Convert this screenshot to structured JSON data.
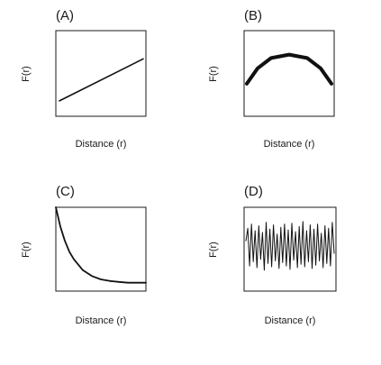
{
  "figure": {
    "background": "#ffffff",
    "ink": "#111111"
  },
  "chart_data": [
    {
      "type": "line",
      "panel": "(A)",
      "xlabel": "Distance (r)",
      "ylabel": "F(r)",
      "shape": "linear increasing",
      "xlim": [
        0,
        1
      ],
      "ylim": [
        0,
        1
      ],
      "x": [
        0.04,
        0.97
      ],
      "y": [
        0.18,
        0.67
      ]
    },
    {
      "type": "line",
      "panel": "(B)",
      "xlabel": "Distance (r)",
      "ylabel": "F(r)",
      "shape": "concave parabola",
      "xlim": [
        0,
        1
      ],
      "ylim": [
        0,
        1
      ],
      "x": [
        0.03,
        0.15,
        0.3,
        0.5,
        0.7,
        0.85,
        0.97
      ],
      "y": [
        0.38,
        0.56,
        0.68,
        0.72,
        0.68,
        0.56,
        0.38
      ]
    },
    {
      "type": "line",
      "panel": "(C)",
      "xlabel": "Distance (r)",
      "ylabel": "F(r)",
      "shape": "exponential decay",
      "xlim": [
        0,
        1
      ],
      "ylim": [
        0,
        1
      ],
      "x": [
        0.0,
        0.05,
        0.1,
        0.15,
        0.2,
        0.3,
        0.4,
        0.5,
        0.6,
        0.7,
        0.8,
        0.9,
        1.0
      ],
      "y": [
        1.0,
        0.77,
        0.6,
        0.47,
        0.38,
        0.25,
        0.18,
        0.14,
        0.12,
        0.11,
        0.1,
        0.1,
        0.1
      ]
    },
    {
      "type": "line",
      "panel": "(D)",
      "xlabel": "Distance (r)",
      "ylabel": "F(r)",
      "shape": "rapid oscillation",
      "xlim": [
        0,
        1
      ],
      "ylim": [
        0,
        1
      ],
      "x": [
        0.02,
        0.04,
        0.06,
        0.08,
        0.1,
        0.12,
        0.14,
        0.16,
        0.18,
        0.2,
        0.22,
        0.24,
        0.26,
        0.28,
        0.3,
        0.32,
        0.34,
        0.36,
        0.38,
        0.4,
        0.42,
        0.44,
        0.46,
        0.48,
        0.5,
        0.52,
        0.54,
        0.56,
        0.58,
        0.6,
        0.62,
        0.64,
        0.66,
        0.68,
        0.7,
        0.72,
        0.74,
        0.76,
        0.78,
        0.8,
        0.82,
        0.84,
        0.86,
        0.88,
        0.9,
        0.92,
        0.94,
        0.96,
        0.98
      ],
      "y": [
        0.6,
        0.75,
        0.3,
        0.8,
        0.35,
        0.72,
        0.28,
        0.78,
        0.38,
        0.7,
        0.25,
        0.82,
        0.33,
        0.74,
        0.29,
        0.79,
        0.36,
        0.68,
        0.27,
        0.76,
        0.34,
        0.8,
        0.3,
        0.73,
        0.26,
        0.81,
        0.37,
        0.71,
        0.28,
        0.77,
        0.32,
        0.83,
        0.29,
        0.72,
        0.35,
        0.79,
        0.27,
        0.74,
        0.31,
        0.8,
        0.36,
        0.69,
        0.28,
        0.78,
        0.33,
        0.75,
        0.3,
        0.82,
        0.45
      ]
    }
  ]
}
